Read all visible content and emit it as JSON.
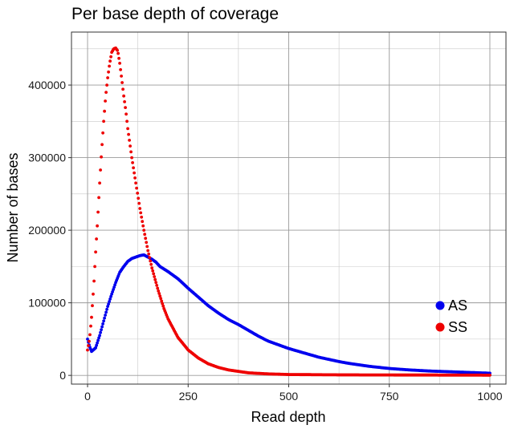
{
  "chart_data": {
    "type": "scatter",
    "title": "Per base depth of coverage",
    "xlabel": "Read depth",
    "ylabel": "Number of bases",
    "xlim": [
      -40,
      1040
    ],
    "ylim": [
      -12000,
      473000
    ],
    "x_ticks": [
      0,
      250,
      500,
      750,
      1000
    ],
    "x_tick_labels": [
      "0",
      "250",
      "500",
      "750",
      "1000"
    ],
    "y_ticks": [
      0,
      100000,
      200000,
      300000,
      400000
    ],
    "y_tick_labels": [
      "0",
      "100000",
      "200000",
      "300000",
      "400000"
    ],
    "x_minor_ticks": [
      125,
      375,
      625,
      875
    ],
    "y_minor_ticks": [
      50000,
      150000,
      250000,
      350000,
      450000
    ],
    "legend_position": "right",
    "series": [
      {
        "name": "AS",
        "color": "#0000ee",
        "knots": [
          [
            0,
            50000
          ],
          [
            5,
            40000
          ],
          [
            10,
            33000
          ],
          [
            20,
            38000
          ],
          [
            30,
            55000
          ],
          [
            40,
            75000
          ],
          [
            50,
            95000
          ],
          [
            60,
            112000
          ],
          [
            70,
            128000
          ],
          [
            80,
            142000
          ],
          [
            90,
            150000
          ],
          [
            100,
            157000
          ],
          [
            110,
            161000
          ],
          [
            120,
            163000
          ],
          [
            130,
            165000
          ],
          [
            140,
            166000
          ],
          [
            150,
            163000
          ],
          [
            160,
            160000
          ],
          [
            170,
            156000
          ],
          [
            180,
            150000
          ],
          [
            200,
            143000
          ],
          [
            225,
            133000
          ],
          [
            250,
            120000
          ],
          [
            275,
            108000
          ],
          [
            300,
            96000
          ],
          [
            325,
            86000
          ],
          [
            350,
            77000
          ],
          [
            375,
            70000
          ],
          [
            400,
            62000
          ],
          [
            425,
            54000
          ],
          [
            450,
            47000
          ],
          [
            475,
            42000
          ],
          [
            500,
            37000
          ],
          [
            525,
            33000
          ],
          [
            550,
            29000
          ],
          [
            575,
            25000
          ],
          [
            600,
            22000
          ],
          [
            625,
            19000
          ],
          [
            650,
            16500
          ],
          [
            675,
            14500
          ],
          [
            700,
            12500
          ],
          [
            725,
            11000
          ],
          [
            750,
            9500
          ],
          [
            775,
            8500
          ],
          [
            800,
            7500
          ],
          [
            850,
            6000
          ],
          [
            900,
            5000
          ],
          [
            950,
            4000
          ],
          [
            1000,
            3000
          ]
        ]
      },
      {
        "name": "SS",
        "color": "#ee0000",
        "knots": [
          [
            0,
            35000
          ],
          [
            5,
            50000
          ],
          [
            10,
            80000
          ],
          [
            15,
            120000
          ],
          [
            20,
            170000
          ],
          [
            25,
            215000
          ],
          [
            30,
            265000
          ],
          [
            35,
            310000
          ],
          [
            40,
            350000
          ],
          [
            45,
            385000
          ],
          [
            50,
            410000
          ],
          [
            55,
            430000
          ],
          [
            60,
            445000
          ],
          [
            65,
            450000
          ],
          [
            70,
            451000
          ],
          [
            75,
            447000
          ],
          [
            80,
            430000
          ],
          [
            85,
            408000
          ],
          [
            90,
            385000
          ],
          [
            95,
            365000
          ],
          [
            100,
            340000
          ],
          [
            110,
            300000
          ],
          [
            120,
            265000
          ],
          [
            130,
            230000
          ],
          [
            140,
            200000
          ],
          [
            150,
            172000
          ],
          [
            160,
            148000
          ],
          [
            175,
            118000
          ],
          [
            190,
            92000
          ],
          [
            200,
            78000
          ],
          [
            225,
            52000
          ],
          [
            250,
            35000
          ],
          [
            275,
            24000
          ],
          [
            300,
            16000
          ],
          [
            325,
            11000
          ],
          [
            350,
            7500
          ],
          [
            400,
            3500
          ],
          [
            450,
            2000
          ],
          [
            500,
            1200
          ],
          [
            600,
            800
          ],
          [
            700,
            600
          ],
          [
            800,
            500
          ],
          [
            900,
            400
          ],
          [
            1000,
            300
          ]
        ]
      }
    ]
  }
}
